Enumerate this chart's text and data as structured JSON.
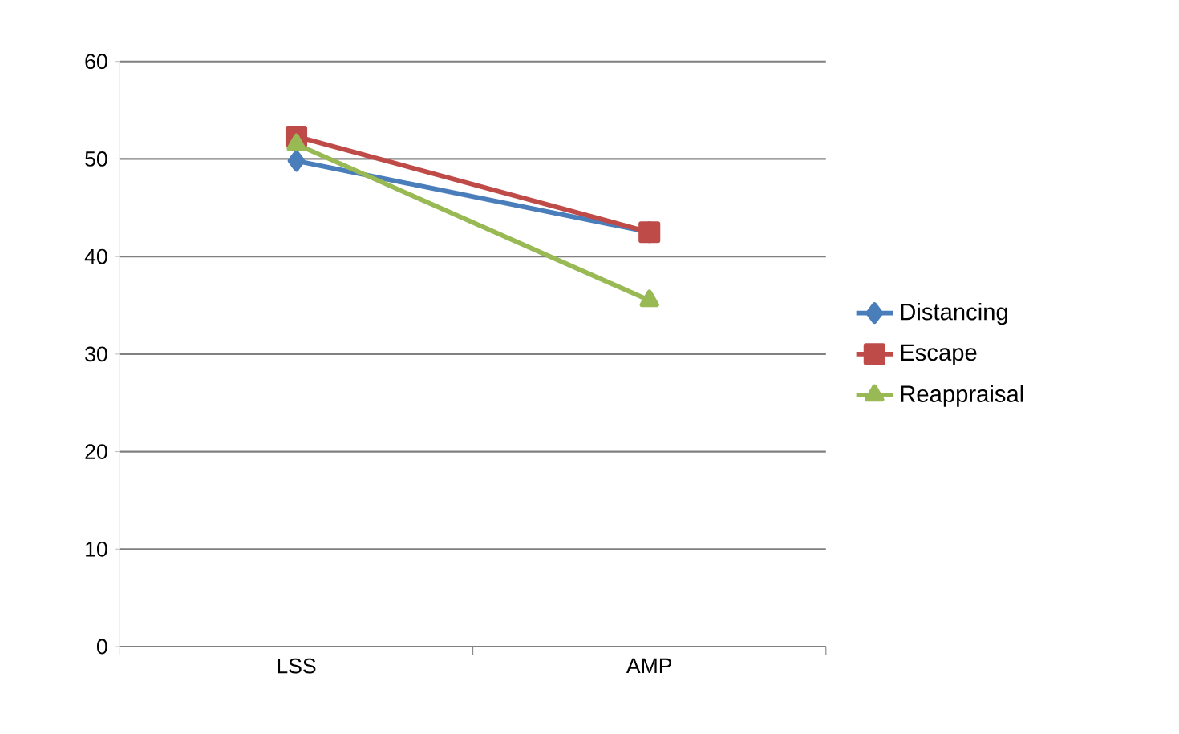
{
  "chart_data": {
    "type": "line",
    "categories": [
      "LSS",
      "AMP"
    ],
    "series": [
      {
        "name": "Distancing",
        "color": "#4a7ebb",
        "marker": "diamond",
        "values": [
          49.8,
          42.5
        ]
      },
      {
        "name": "Escape",
        "color": "#be4b48",
        "marker": "square",
        "values": [
          52.3,
          42.5
        ]
      },
      {
        "name": "Reappraisal",
        "color": "#98b954",
        "marker": "triangle",
        "values": [
          51.5,
          35.5
        ]
      }
    ],
    "ylim": [
      0,
      60
    ],
    "yticks": [
      0,
      10,
      20,
      30,
      40,
      50,
      60
    ],
    "grid": "y",
    "legend": "right",
    "line_style": "solid"
  }
}
